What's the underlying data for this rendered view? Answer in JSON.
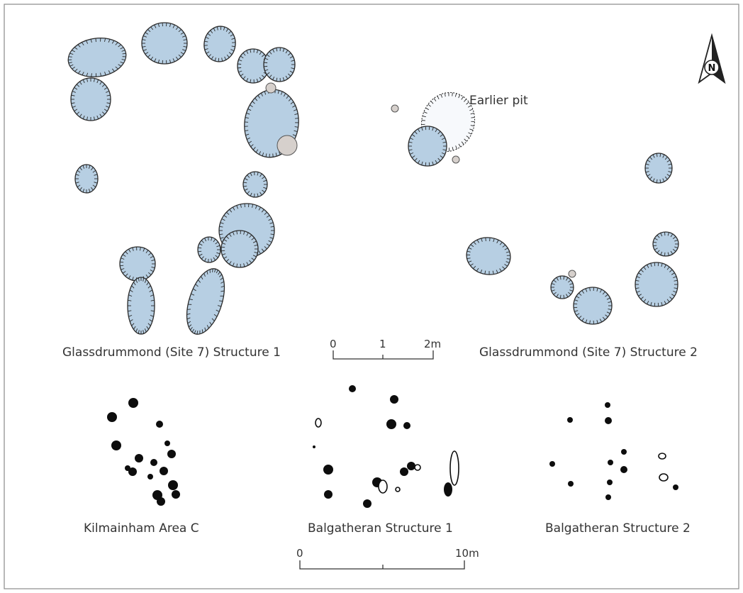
{
  "labels": {
    "north": "N",
    "earlier_pit": "Earlier pit",
    "glass1": "Glassdrummond (Site 7) Structure 1",
    "glass2": "Glassdrummond (Site 7) Structure 2",
    "kilmainham": "Kilmainham Area C",
    "balg1": "Balgatheran Structure 1",
    "balg2": "Balgatheran Structure 2"
  },
  "scale_top": {
    "t0": "0",
    "t1": "1",
    "t2": "2m"
  },
  "scale_bottom": {
    "t0": "0",
    "t1": "10m"
  },
  "colors": {
    "pit_fill": "#b7cfe3",
    "outline": "#2a2a2a",
    "posthole": "#0d0d0d"
  }
}
